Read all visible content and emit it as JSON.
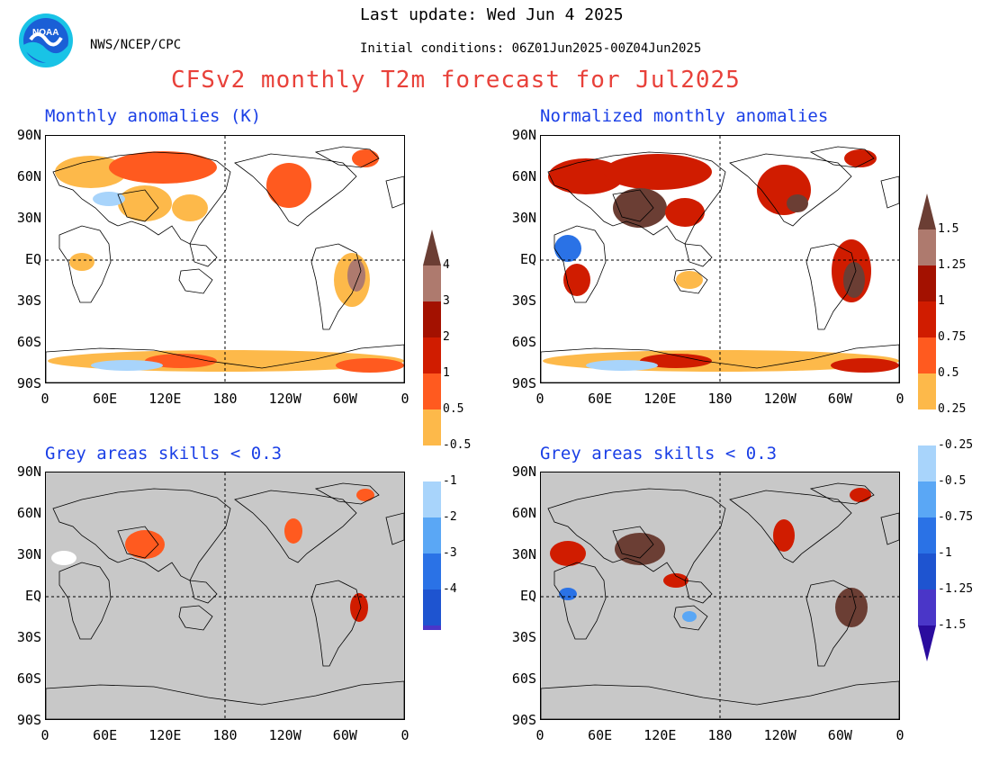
{
  "header": {
    "org": "NWS/NCEP/CPC",
    "last_update": "Last update: Wed Jun 4 2025",
    "initial_conditions": "Initial conditions: 06Z01Jun2025-00Z04Jun2025",
    "title": "CFSv2 monthly T2m forecast for Jul2025",
    "logo_text": "NOAA"
  },
  "panels": {
    "top_left": {
      "title": "Monthly anomalies (K)"
    },
    "top_right": {
      "title": "Normalized monthly anomalies"
    },
    "bottom_left": {
      "title": "Grey areas skills < 0.3"
    },
    "bottom_right": {
      "title": "Grey areas skills < 0.3"
    }
  },
  "axes": {
    "lat_ticks": [
      "90N",
      "60N",
      "30N",
      "EQ",
      "30S",
      "60S",
      "90S"
    ],
    "lon_ticks": [
      "0",
      "60E",
      "120E",
      "180",
      "120W",
      "60W",
      "0"
    ]
  },
  "colorbars": {
    "anomaly_K": {
      "labels": [
        "4",
        "3",
        "2",
        "1",
        "0.5",
        "-0.5",
        "-1",
        "-2",
        "-3",
        "-4"
      ]
    },
    "normalized": {
      "labels": [
        "1.5",
        "1.25",
        "1",
        "0.75",
        "0.5",
        "0.25",
        "-0.25",
        "-0.5",
        "-0.75",
        "-1",
        "-1.25",
        "-1.5"
      ]
    }
  },
  "colors": {
    "title_red": "#e8413a",
    "panel_blue": "#1a3fe6",
    "warm": [
      "#fdb94a",
      "#ff5a1f",
      "#d01c00",
      "#a31100",
      "#ae7a6e",
      "#6b3e34"
    ],
    "cool": [
      "#a8d4fb",
      "#5aa7f5",
      "#2a72e6",
      "#1e54d0",
      "#4a36c8",
      "#2a0c9e"
    ],
    "skill_grey": "#c8c8c8"
  }
}
